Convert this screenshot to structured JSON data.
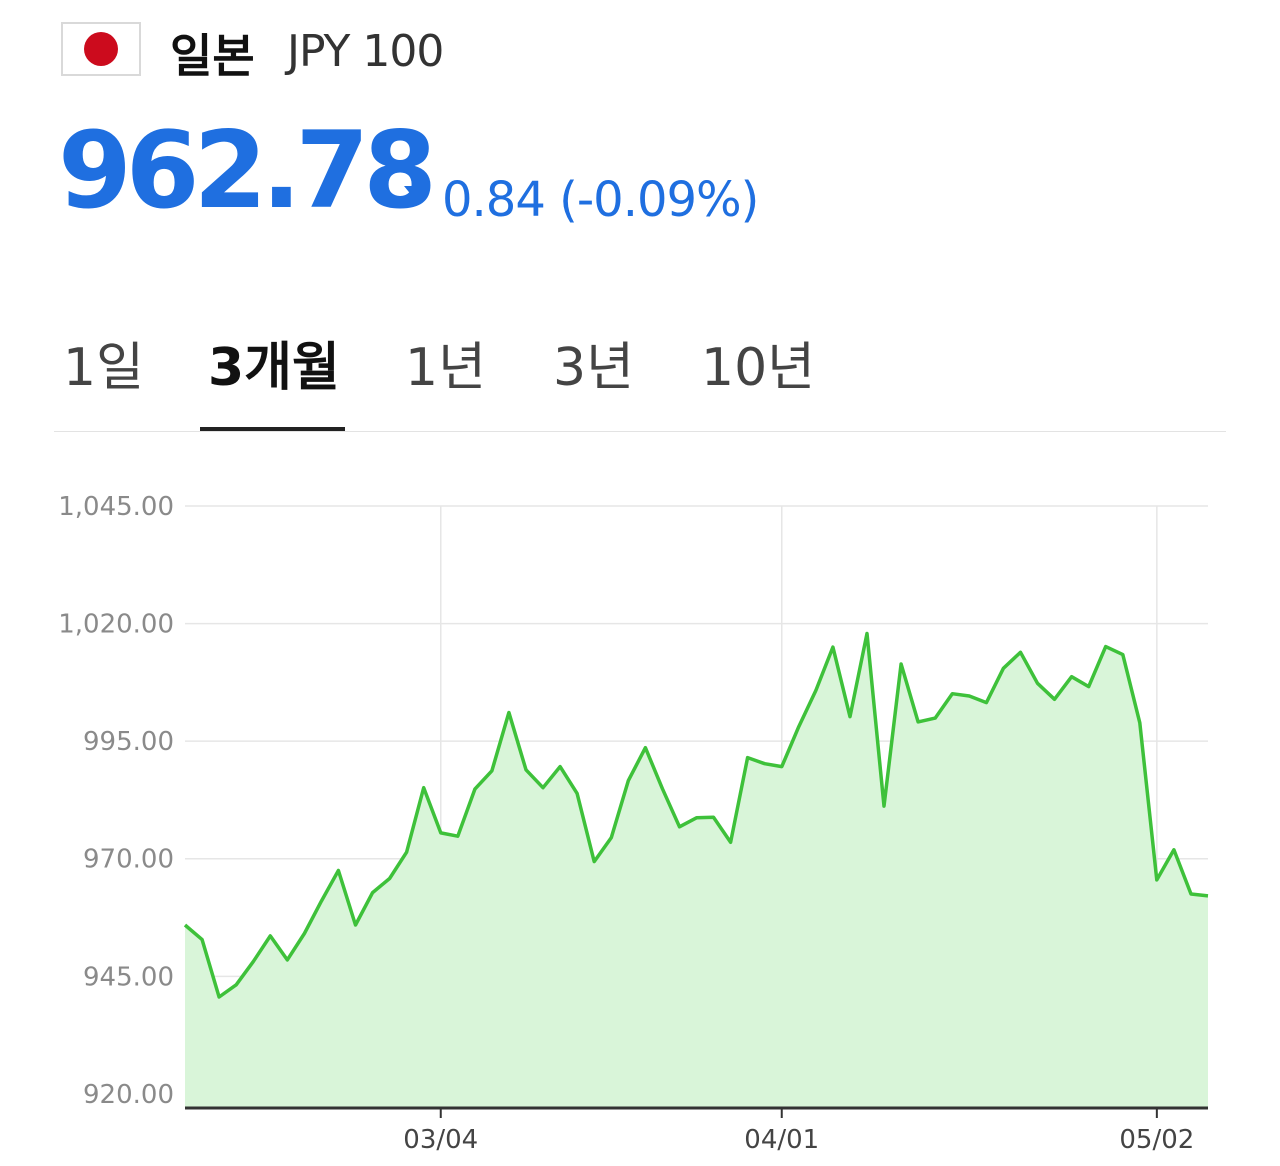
{
  "header": {
    "flag_icon": "japan-flag-icon",
    "flag_color": "#cc0b1d",
    "country": "일본",
    "code": "JPY 100"
  },
  "quote": {
    "price": "962.78",
    "direction_icon": "down-triangle-icon",
    "change": "0.84 (-0.09%)",
    "accent_color": "#1f6fe0"
  },
  "tabs": [
    {
      "label": "1일",
      "active": false
    },
    {
      "label": "3개월",
      "active": true
    },
    {
      "label": "1년",
      "active": false
    },
    {
      "label": "3년",
      "active": false
    },
    {
      "label": "10년",
      "active": false
    }
  ],
  "chart_data": {
    "type": "area",
    "line_color": "#3ec13a",
    "fill_color": "#d9f5d9",
    "ylim": [
      917,
      1045
    ],
    "yticks": [
      1045,
      1020,
      995,
      970,
      945,
      920
    ],
    "ytick_labels": [
      "1,045.00",
      "1,020.00",
      "995.00",
      "970.00",
      "945.00",
      "920.00"
    ],
    "xticks": [
      {
        "label": "03/04",
        "at_index": 15
      },
      {
        "label": "04/01",
        "at_index": 35
      },
      {
        "label": "05/02",
        "at_index": 57
      }
    ],
    "grid": true,
    "series": [
      {
        "values": [
          955.9,
          952.8,
          940.6,
          943.2,
          948.1,
          953.6,
          948.5,
          954.1,
          961.0,
          967.5,
          955.9,
          962.8,
          965.8,
          971.4,
          985.1,
          975.5,
          974.8,
          984.8,
          988.7,
          1001.1,
          988.9,
          985.1,
          989.6,
          983.9,
          969.4,
          974.5,
          986.6,
          993.6,
          984.9,
          976.8,
          978.7,
          978.8,
          973.5,
          991.5,
          990.2,
          989.6,
          998.1,
          1005.8,
          1015.0,
          1000.2,
          1017.9,
          981.2,
          1011.4,
          999.1,
          999.9,
          1005.1,
          1004.6,
          1003.2,
          1010.5,
          1013.9,
          1007.3,
          1003.9,
          1008.7,
          1006.6,
          1015.1,
          1013.4,
          998.9,
          965.5,
          971.9,
          962.5,
          962.1
        ]
      }
    ]
  }
}
